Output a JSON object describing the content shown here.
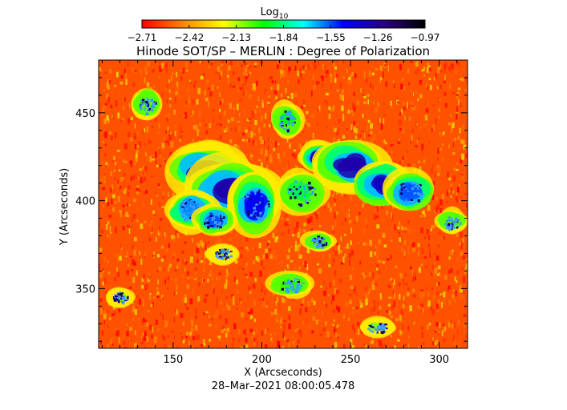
{
  "chart_data": {
    "type": "heatmap",
    "title": "Hinode SOT/SP – MERLIN : Degree of Polarization",
    "xlabel": "X (Arcseconds)",
    "ylabel": "Y (Arcseconds)",
    "xlim": [
      108,
      316
    ],
    "ylim": [
      316,
      480
    ],
    "x_ticks": [
      150,
      200,
      250,
      300
    ],
    "y_ticks": [
      350,
      400,
      450
    ],
    "x_tick_labels": [
      "150",
      "200",
      "250",
      "300"
    ],
    "y_tick_labels": [
      "350",
      "400",
      "450"
    ],
    "colorbar": {
      "label": "Log",
      "label_sub": "10",
      "min": -2.71,
      "max": -0.97,
      "tick_values": [
        -2.71,
        -2.42,
        -2.13,
        -1.84,
        -1.55,
        -1.26,
        -0.97
      ],
      "tick_labels": [
        "−2.71",
        "−2.42",
        "−2.13",
        "−1.84",
        "−1.55",
        "−1.26",
        "−0.97"
      ],
      "colormap": [
        "#ff0000",
        "#ff8000",
        "#ffff00",
        "#00ff00",
        "#00ffff",
        "#0000ff",
        "#2b0080",
        "#000000"
      ]
    },
    "background_level": -2.55,
    "regions": [
      {
        "x": 168,
        "y": 418,
        "rx": 14,
        "ry": 11,
        "level": -1.35
      },
      {
        "x": 182,
        "y": 405,
        "rx": 18,
        "ry": 13,
        "level": -1.3
      },
      {
        "x": 196,
        "y": 398,
        "rx": 10,
        "ry": 12,
        "level": -1.45
      },
      {
        "x": 160,
        "y": 395,
        "rx": 10,
        "ry": 8,
        "level": -1.6
      },
      {
        "x": 173,
        "y": 389,
        "rx": 8,
        "ry": 6,
        "level": -1.55
      },
      {
        "x": 232,
        "y": 425,
        "rx": 8,
        "ry": 6,
        "level": -1.35
      },
      {
        "x": 250,
        "y": 420,
        "rx": 14,
        "ry": 10,
        "level": -1.3
      },
      {
        "x": 268,
        "y": 410,
        "rx": 12,
        "ry": 9,
        "level": -1.35
      },
      {
        "x": 283,
        "y": 405,
        "rx": 10,
        "ry": 8,
        "level": -1.55
      },
      {
        "x": 222,
        "y": 405,
        "rx": 10,
        "ry": 9,
        "level": -1.9
      },
      {
        "x": 214,
        "y": 446,
        "rx": 6,
        "ry": 7,
        "level": -1.95
      },
      {
        "x": 135,
        "y": 455,
        "rx": 6,
        "ry": 6,
        "level": -2.05
      },
      {
        "x": 217,
        "y": 352,
        "rx": 9,
        "ry": 5,
        "level": -2.0
      },
      {
        "x": 232,
        "y": 377,
        "rx": 6,
        "ry": 4,
        "level": -2.05
      },
      {
        "x": 307,
        "y": 388,
        "rx": 6,
        "ry": 5,
        "level": -2.05
      },
      {
        "x": 120,
        "y": 345,
        "rx": 5,
        "ry": 4,
        "level": -2.1
      },
      {
        "x": 265,
        "y": 328,
        "rx": 7,
        "ry": 4,
        "level": -2.1
      },
      {
        "x": 178,
        "y": 370,
        "rx": 6,
        "ry": 4,
        "level": -2.15
      }
    ],
    "timestamp": "28–Mar–2021 08:00:05.478"
  }
}
